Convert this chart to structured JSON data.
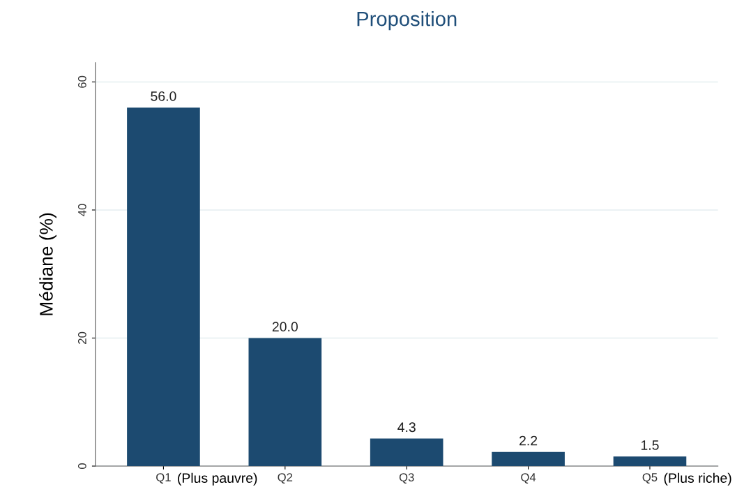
{
  "chart_data": {
    "type": "bar",
    "title": "Proposition",
    "ylabel": "Médiane (%)",
    "categories": [
      "Q1",
      "Q2",
      "Q3",
      "Q4",
      "Q5"
    ],
    "values": [
      56.0,
      20.0,
      4.3,
      2.2,
      1.5
    ],
    "value_labels": [
      "56.0",
      "20.0",
      "4.3",
      "2.2",
      "1.5"
    ],
    "color": "#1c4a70",
    "ylim": [
      0,
      63
    ],
    "yticks": [
      0,
      20,
      40,
      60
    ],
    "grid": "y",
    "legend": false,
    "annotations": [
      "(Plus pauvre)",
      "(Plus riche)"
    ]
  }
}
